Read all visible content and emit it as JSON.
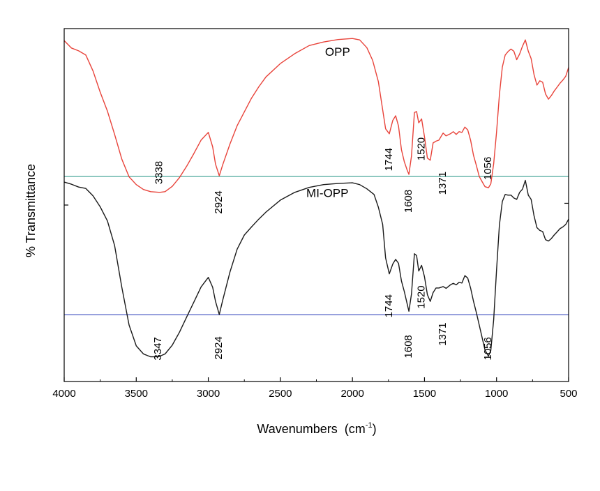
{
  "chart_data": {
    "type": "line",
    "xlabel": "Wavenumbers",
    "xlabel_unit": "(cm",
    "xlabel_exp": "-1",
    "xlabel_close": ")",
    "ylabel": "% Transmittance",
    "xlim": [
      4000,
      500
    ],
    "x_reversed": true,
    "ylim": [
      0,
      100
    ],
    "x_ticks": [
      4000,
      3500,
      3000,
      2500,
      2000,
      1500,
      1000,
      500
    ],
    "x_tick_labels": [
      "4000",
      "3500",
      "3000",
      "2500",
      "2000",
      "1500",
      "1000",
      "500"
    ],
    "grid": false,
    "series": [
      {
        "name": "OPP",
        "color": "#e8433a",
        "baseline": 58.1,
        "baseline_color": "#4aa89a",
        "points": [
          [
            4000,
            96.6
          ],
          [
            3950,
            94.5
          ],
          [
            3900,
            93.7
          ],
          [
            3850,
            92.5
          ],
          [
            3800,
            88
          ],
          [
            3750,
            82
          ],
          [
            3700,
            76.6
          ],
          [
            3650,
            70
          ],
          [
            3600,
            63
          ],
          [
            3550,
            58
          ],
          [
            3500,
            55.8
          ],
          [
            3450,
            54.4
          ],
          [
            3400,
            53.8
          ],
          [
            3338,
            53.6
          ],
          [
            3300,
            53.8
          ],
          [
            3250,
            55.3
          ],
          [
            3200,
            57.8
          ],
          [
            3150,
            61
          ],
          [
            3100,
            64.6
          ],
          [
            3050,
            68.4
          ],
          [
            3000,
            70.6
          ],
          [
            2970,
            66.5
          ],
          [
            2950,
            61.6
          ],
          [
            2924,
            58.3
          ],
          [
            2900,
            61.4
          ],
          [
            2850,
            67.3
          ],
          [
            2800,
            72.5
          ],
          [
            2750,
            76.4
          ],
          [
            2700,
            80.3
          ],
          [
            2650,
            83.5
          ],
          [
            2600,
            86.3
          ],
          [
            2500,
            90.1
          ],
          [
            2400,
            92.9
          ],
          [
            2300,
            95.2
          ],
          [
            2200,
            96.2
          ],
          [
            2100,
            96.9
          ],
          [
            2000,
            97.2
          ],
          [
            1950,
            96.8
          ],
          [
            1900,
            94.6
          ],
          [
            1860,
            91
          ],
          [
            1820,
            85
          ],
          [
            1790,
            77
          ],
          [
            1770,
            71.6
          ],
          [
            1744,
            70.2
          ],
          [
            1720,
            74
          ],
          [
            1700,
            75.3
          ],
          [
            1680,
            72.4
          ],
          [
            1660,
            65.7
          ],
          [
            1640,
            62.3
          ],
          [
            1620,
            59.9
          ],
          [
            1608,
            58.7
          ],
          [
            1590,
            63.9
          ],
          [
            1570,
            76.2
          ],
          [
            1555,
            76.5
          ],
          [
            1540,
            73.3
          ],
          [
            1520,
            74.4
          ],
          [
            1500,
            69.4
          ],
          [
            1480,
            63.3
          ],
          [
            1460,
            62.7
          ],
          [
            1440,
            67.6
          ],
          [
            1420,
            68.1
          ],
          [
            1400,
            68.4
          ],
          [
            1371,
            70.4
          ],
          [
            1350,
            69.6
          ],
          [
            1320,
            70.2
          ],
          [
            1300,
            70.8
          ],
          [
            1280,
            70
          ],
          [
            1260,
            70.8
          ],
          [
            1240,
            70.6
          ],
          [
            1220,
            72.1
          ],
          [
            1200,
            71.3
          ],
          [
            1180,
            68.4
          ],
          [
            1160,
            64.1
          ],
          [
            1140,
            61.2
          ],
          [
            1120,
            58.1
          ],
          [
            1100,
            56.6
          ],
          [
            1080,
            55.2
          ],
          [
            1056,
            54.9
          ],
          [
            1040,
            56
          ],
          [
            1020,
            61.7
          ],
          [
            1000,
            70.6
          ],
          [
            980,
            81.2
          ],
          [
            960,
            89.1
          ],
          [
            940,
            92.5
          ],
          [
            920,
            93.5
          ],
          [
            900,
            94.2
          ],
          [
            880,
            93.6
          ],
          [
            860,
            91.2
          ],
          [
            840,
            92.8
          ],
          [
            820,
            95
          ],
          [
            800,
            96.8
          ],
          [
            780,
            93.6
          ],
          [
            760,
            91.5
          ],
          [
            740,
            87
          ],
          [
            720,
            84
          ],
          [
            700,
            85.2
          ],
          [
            680,
            84.8
          ],
          [
            660,
            81.5
          ],
          [
            640,
            80
          ],
          [
            620,
            81
          ],
          [
            600,
            82.3
          ],
          [
            580,
            83.4
          ],
          [
            560,
            84.5
          ],
          [
            540,
            85.4
          ],
          [
            520,
            86.5
          ],
          [
            500,
            89
          ]
        ]
      },
      {
        "name": "MI-OPP",
        "color": "#1a1a1a",
        "baseline": 18.9,
        "baseline_color": "#4b5bc4",
        "points": [
          [
            4000,
            56.5
          ],
          [
            3950,
            55.9
          ],
          [
            3900,
            55.1
          ],
          [
            3850,
            54.7
          ],
          [
            3800,
            52.6
          ],
          [
            3750,
            49.5
          ],
          [
            3700,
            45.5
          ],
          [
            3650,
            38.5
          ],
          [
            3600,
            26.7
          ],
          [
            3550,
            16
          ],
          [
            3500,
            10.1
          ],
          [
            3450,
            7.8
          ],
          [
            3400,
            7
          ],
          [
            3347,
            7
          ],
          [
            3300,
            7.8
          ],
          [
            3250,
            10.3
          ],
          [
            3200,
            14
          ],
          [
            3150,
            18.3
          ],
          [
            3100,
            22.5
          ],
          [
            3050,
            26.8
          ],
          [
            3000,
            29.5
          ],
          [
            2970,
            26.7
          ],
          [
            2950,
            22.7
          ],
          [
            2924,
            19
          ],
          [
            2900,
            23
          ],
          [
            2850,
            31
          ],
          [
            2800,
            37.5
          ],
          [
            2750,
            41.5
          ],
          [
            2700,
            43.8
          ],
          [
            2650,
            46
          ],
          [
            2600,
            48
          ],
          [
            2500,
            51.4
          ],
          [
            2400,
            53.6
          ],
          [
            2300,
            55
          ],
          [
            2200,
            55.8
          ],
          [
            2100,
            56.1
          ],
          [
            2000,
            56.3
          ],
          [
            1950,
            55.8
          ],
          [
            1900,
            54.6
          ],
          [
            1850,
            53
          ],
          [
            1820,
            49.4
          ],
          [
            1790,
            44.5
          ],
          [
            1770,
            35
          ],
          [
            1744,
            30.5
          ],
          [
            1720,
            33.3
          ],
          [
            1700,
            34.6
          ],
          [
            1680,
            33.5
          ],
          [
            1660,
            28.5
          ],
          [
            1640,
            25.5
          ],
          [
            1620,
            22
          ],
          [
            1608,
            19.9
          ],
          [
            1590,
            24.8
          ],
          [
            1570,
            36.2
          ],
          [
            1555,
            35.7
          ],
          [
            1540,
            31.3
          ],
          [
            1520,
            32.9
          ],
          [
            1500,
            29.7
          ],
          [
            1480,
            24.6
          ],
          [
            1460,
            22.7
          ],
          [
            1440,
            25.2
          ],
          [
            1420,
            26.5
          ],
          [
            1400,
            26.5
          ],
          [
            1371,
            26.9
          ],
          [
            1350,
            26.4
          ],
          [
            1320,
            27.4
          ],
          [
            1300,
            27.8
          ],
          [
            1280,
            27.4
          ],
          [
            1260,
            28.1
          ],
          [
            1240,
            27.9
          ],
          [
            1220,
            30
          ],
          [
            1200,
            29.3
          ],
          [
            1180,
            26.5
          ],
          [
            1160,
            22.7
          ],
          [
            1140,
            19.5
          ],
          [
            1120,
            16
          ],
          [
            1100,
            12.4
          ],
          [
            1080,
            8.9
          ],
          [
            1056,
            7.2
          ],
          [
            1040,
            8.8
          ],
          [
            1020,
            17.5
          ],
          [
            1000,
            31.5
          ],
          [
            980,
            44.3
          ],
          [
            960,
            51
          ],
          [
            940,
            53
          ],
          [
            920,
            52.8
          ],
          [
            900,
            52.8
          ],
          [
            880,
            52
          ],
          [
            860,
            51.6
          ],
          [
            840,
            53.6
          ],
          [
            820,
            54.5
          ],
          [
            800,
            57
          ],
          [
            780,
            52.8
          ],
          [
            760,
            51.6
          ],
          [
            740,
            47
          ],
          [
            720,
            43.6
          ],
          [
            700,
            42.8
          ],
          [
            680,
            42.5
          ],
          [
            660,
            40.2
          ],
          [
            640,
            39.8
          ],
          [
            620,
            40.5
          ],
          [
            600,
            41.5
          ],
          [
            580,
            42.4
          ],
          [
            560,
            43.3
          ],
          [
            540,
            43.8
          ],
          [
            520,
            44.5
          ],
          [
            500,
            46
          ]
        ]
      }
    ],
    "annotations": [
      {
        "text": "3338",
        "x": 3338,
        "y": 59.2,
        "rotate": -90
      },
      {
        "text": "2924",
        "x": 2924,
        "y": 50.8,
        "rotate": -90
      },
      {
        "text": "1744",
        "x": 1744,
        "y": 62.9,
        "rotate": -90
      },
      {
        "text": "1608",
        "x": 1608,
        "y": 51.1,
        "rotate": -90
      },
      {
        "text": "1520",
        "x": 1520,
        "y": 65.9,
        "rotate": -90
      },
      {
        "text": "1371",
        "x": 1371,
        "y": 56.2,
        "rotate": -90
      },
      {
        "text": "1056",
        "x": 1056,
        "y": 60.4,
        "rotate": -90
      },
      {
        "text": "3347",
        "x": 3347,
        "y": 9.3,
        "rotate": -90
      },
      {
        "text": "2924",
        "x": 2924,
        "y": 9.5,
        "rotate": -90
      },
      {
        "text": "1744",
        "x": 1744,
        "y": 21.4,
        "rotate": -90
      },
      {
        "text": "1608",
        "x": 1608,
        "y": 9.9,
        "rotate": -90
      },
      {
        "text": "1520",
        "x": 1520,
        "y": 23.9,
        "rotate": -90
      },
      {
        "text": "1371",
        "x": 1371,
        "y": 13.4,
        "rotate": -90
      },
      {
        "text": "1056",
        "x": 1056,
        "y": 9.3,
        "rotate": -90
      },
      {
        "text": "OPP",
        "x": 2190,
        "y": 92.3,
        "rotate": 0,
        "kind": "series"
      },
      {
        "text": "MI-OPP",
        "x": 2320,
        "y": 52.3,
        "rotate": 0,
        "kind": "series"
      }
    ]
  }
}
